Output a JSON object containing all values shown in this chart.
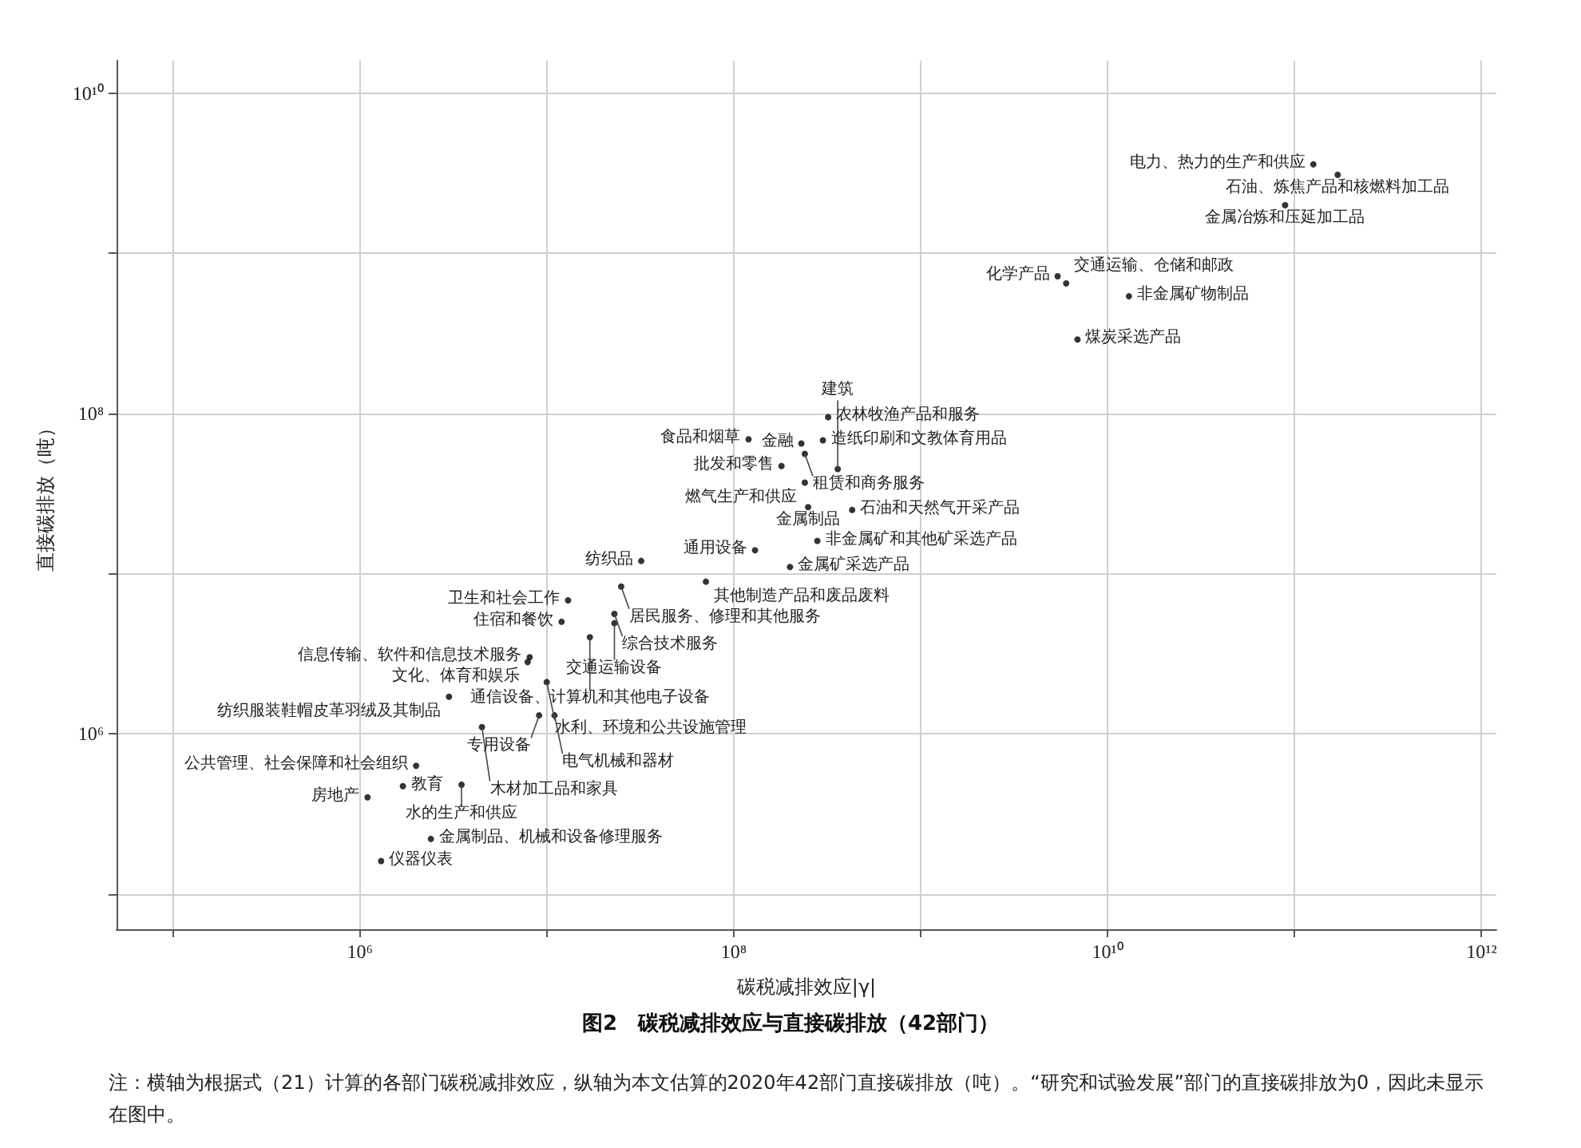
{
  "chart_data": {
    "type": "scatter",
    "title": "图2　碳税减排效应与直接碳排放（42部门）",
    "xlabel": "碳税减排效应|γ|",
    "ylabel": "直接碳排放（吨）",
    "log": "xy",
    "grid": true,
    "marker": "circle",
    "xlim": [
      50000.0,
      1200000000000.0
    ],
    "ylim": [
      60000.0,
      16000000000.0
    ],
    "xticks": [
      {
        "value": 100000.0,
        "label": null
      },
      {
        "value": 1000000.0,
        "label": "10⁶"
      },
      {
        "value": 10000000.0,
        "label": null
      },
      {
        "value": 100000000.0,
        "label": "10⁸"
      },
      {
        "value": 1000000000.0,
        "label": null
      },
      {
        "value": 10000000000.0,
        "label": "10¹⁰"
      },
      {
        "value": 100000000000.0,
        "label": null
      },
      {
        "value": 1000000000000.0,
        "label": "10¹²"
      }
    ],
    "yticks": [
      {
        "value": 100000.0,
        "label": null
      },
      {
        "value": 1000000.0,
        "label": "10⁶"
      },
      {
        "value": 10000000.0,
        "label": null
      },
      {
        "value": 100000000.0,
        "label": "10⁸"
      },
      {
        "value": 1000000000.0,
        "label": null
      },
      {
        "value": 10000000000.0,
        "label": "10¹⁰"
      }
    ],
    "series": [
      {
        "color": "#000000",
        "x": [
          126000000000.0,
          170000000000.0,
          89000000000.0,
          5400000000.0,
          6000000000.0,
          13000000000.0,
          6900000000.0,
          320000000.0,
          120000000.0,
          300000000.0,
          230000000.0,
          240000000.0,
          180000000.0,
          360000000.0,
          240000000.0,
          250000000.0,
          430000000.0,
          130000000.0,
          280000000.0,
          200000000.0,
          71000000.0,
          32000000.0,
          25000000.0,
          13000000.0,
          23000000.0,
          12000000.0,
          23000000.0,
          17000000.0,
          8100000.0,
          7900000.0,
          10000000.0,
          3000000.0,
          9100000.0,
          11000000.0,
          4500000.0,
          2000000.0,
          1700000.0,
          3500000.0,
          1100000.0,
          2400000.0,
          1300000.0
        ],
        "values": [
          3600000000.0,
          3100000000.0,
          2000000000.0,
          720000000.0,
          650000000.0,
          540000000.0,
          290000000.0,
          95000000.0,
          69000000.0,
          68000000.0,
          65000000.0,
          56000000.0,
          47000000.0,
          45000000.0,
          37000000.0,
          26000000.0,
          25000000.0,
          14000000.0,
          16000000.0,
          11000000.0,
          8900000.0,
          12000000.0,
          8300000.0,
          6800000.0,
          5600000.0,
          5000000.0,
          4900000.0,
          4000000.0,
          3000000.0,
          2800000.0,
          2100000.0,
          1700000.0,
          1300000.0,
          1300000.0,
          1100000.0,
          630000.0,
          470000.0,
          480000.0,
          400000.0,
          220000.0,
          160000.0
        ]
      }
    ],
    "annotations": [
      {
        "text": "电力、热力的生产和供应",
        "x": 126000000000.0,
        "y": 3600000000.0
      },
      {
        "text": "石油、炼焦产品和核燃料加工品",
        "x": 170000000000.0,
        "y": 3100000000.0
      },
      {
        "text": "金属冶炼和压延加工品",
        "x": 89000000000.0,
        "y": 2000000000.0
      },
      {
        "text": "化学产品",
        "x": 5400000000.0,
        "y": 720000000.0
      },
      {
        "text": "交通运输、仓储和邮政",
        "x": 6000000000.0,
        "y": 650000000.0
      },
      {
        "text": "非金属矿物制品",
        "x": 13000000000.0,
        "y": 540000000.0
      },
      {
        "text": "煤炭采选产品",
        "x": 6900000000.0,
        "y": 290000000.0
      },
      {
        "text": "农林牧渔产品和服务",
        "x": 320000000.0,
        "y": 95000000.0
      },
      {
        "text": "食品和烟草",
        "x": 120000000.0,
        "y": 69000000.0
      },
      {
        "text": "造纸印刷和文教体育用品",
        "x": 300000000.0,
        "y": 68000000.0
      },
      {
        "text": "金融",
        "x": 230000000.0,
        "y": 65000000.0
      },
      {
        "text": "租赁和商务服务",
        "x": 240000000.0,
        "y": 56000000.0
      },
      {
        "text": "批发和零售",
        "x": 180000000.0,
        "y": 47000000.0
      },
      {
        "text": "建筑",
        "x": 360000000.0,
        "y": 45000000.0
      },
      {
        "text": "燃气生产和供应",
        "x": 240000000.0,
        "y": 37000000.0
      },
      {
        "text": "金属制品",
        "x": 250000000.0,
        "y": 26000000.0
      },
      {
        "text": "石油和天然气开采产品",
        "x": 430000000.0,
        "y": 25000000.0
      },
      {
        "text": "通用设备",
        "x": 130000000.0,
        "y": 14000000.0
      },
      {
        "text": "非金属矿和其他矿采选产品",
        "x": 280000000.0,
        "y": 16000000.0
      },
      {
        "text": "金属矿采选产品",
        "x": 200000000.0,
        "y": 11000000.0
      },
      {
        "text": "其他制造产品和废品废料",
        "x": 71000000.0,
        "y": 8900000.0
      },
      {
        "text": "纺织品",
        "x": 32000000.0,
        "y": 12000000.0
      },
      {
        "text": "居民服务、修理和其他服务",
        "x": 25000000.0,
        "y": 8300000.0
      },
      {
        "text": "卫生和社会工作",
        "x": 13000000.0,
        "y": 6800000.0
      },
      {
        "text": "综合技术服务",
        "x": 23000000.0,
        "y": 5600000.0
      },
      {
        "text": "住宿和餐饮",
        "x": 12000000.0,
        "y": 5000000.0
      },
      {
        "text": "交通运输设备",
        "x": 23000000.0,
        "y": 4900000.0
      },
      {
        "text": "通信设备、计算机和其他电子设备",
        "x": 17000000.0,
        "y": 4000000.0
      },
      {
        "text": "信息传输、软件和信息技术服务",
        "x": 8100000.0,
        "y": 3000000.0
      },
      {
        "text": "文化、体育和娱乐",
        "x": 7900000.0,
        "y": 2800000.0
      },
      {
        "text": "水利、环境和公共设施管理",
        "x": 10000000.0,
        "y": 2100000.0
      },
      {
        "text": "纺织服装鞋帽皮革羽绒及其制品",
        "x": 3000000.0,
        "y": 1700000.0
      },
      {
        "text": "专用设备",
        "x": 9100000.0,
        "y": 1300000.0
      },
      {
        "text": "电气机械和器材",
        "x": 11000000.0,
        "y": 1300000.0
      },
      {
        "text": "木材加工品和家具",
        "x": 4500000.0,
        "y": 1100000.0
      },
      {
        "text": "公共管理、社会保障和社会组织",
        "x": 2000000.0,
        "y": 630000.0
      },
      {
        "text": "教育",
        "x": 1700000.0,
        "y": 470000.0
      },
      {
        "text": "水的生产和供应",
        "x": 3500000.0,
        "y": 480000.0
      },
      {
        "text": "房地产",
        "x": 1100000.0,
        "y": 400000.0
      },
      {
        "text": "金属制品、机械和设备修理服务",
        "x": 2400000.0,
        "y": 220000.0
      },
      {
        "text": "仪器仪表",
        "x": 1300000.0,
        "y": 160000.0
      },
      "注：横轴为根据式（21）计算的各部门碳税减排效应，纵轴为本文估算的2020年42部门直接碳排放（吨）。“研究和试验发展”部门的直接碳排放为0，因此未显示在图中。"
    ]
  }
}
